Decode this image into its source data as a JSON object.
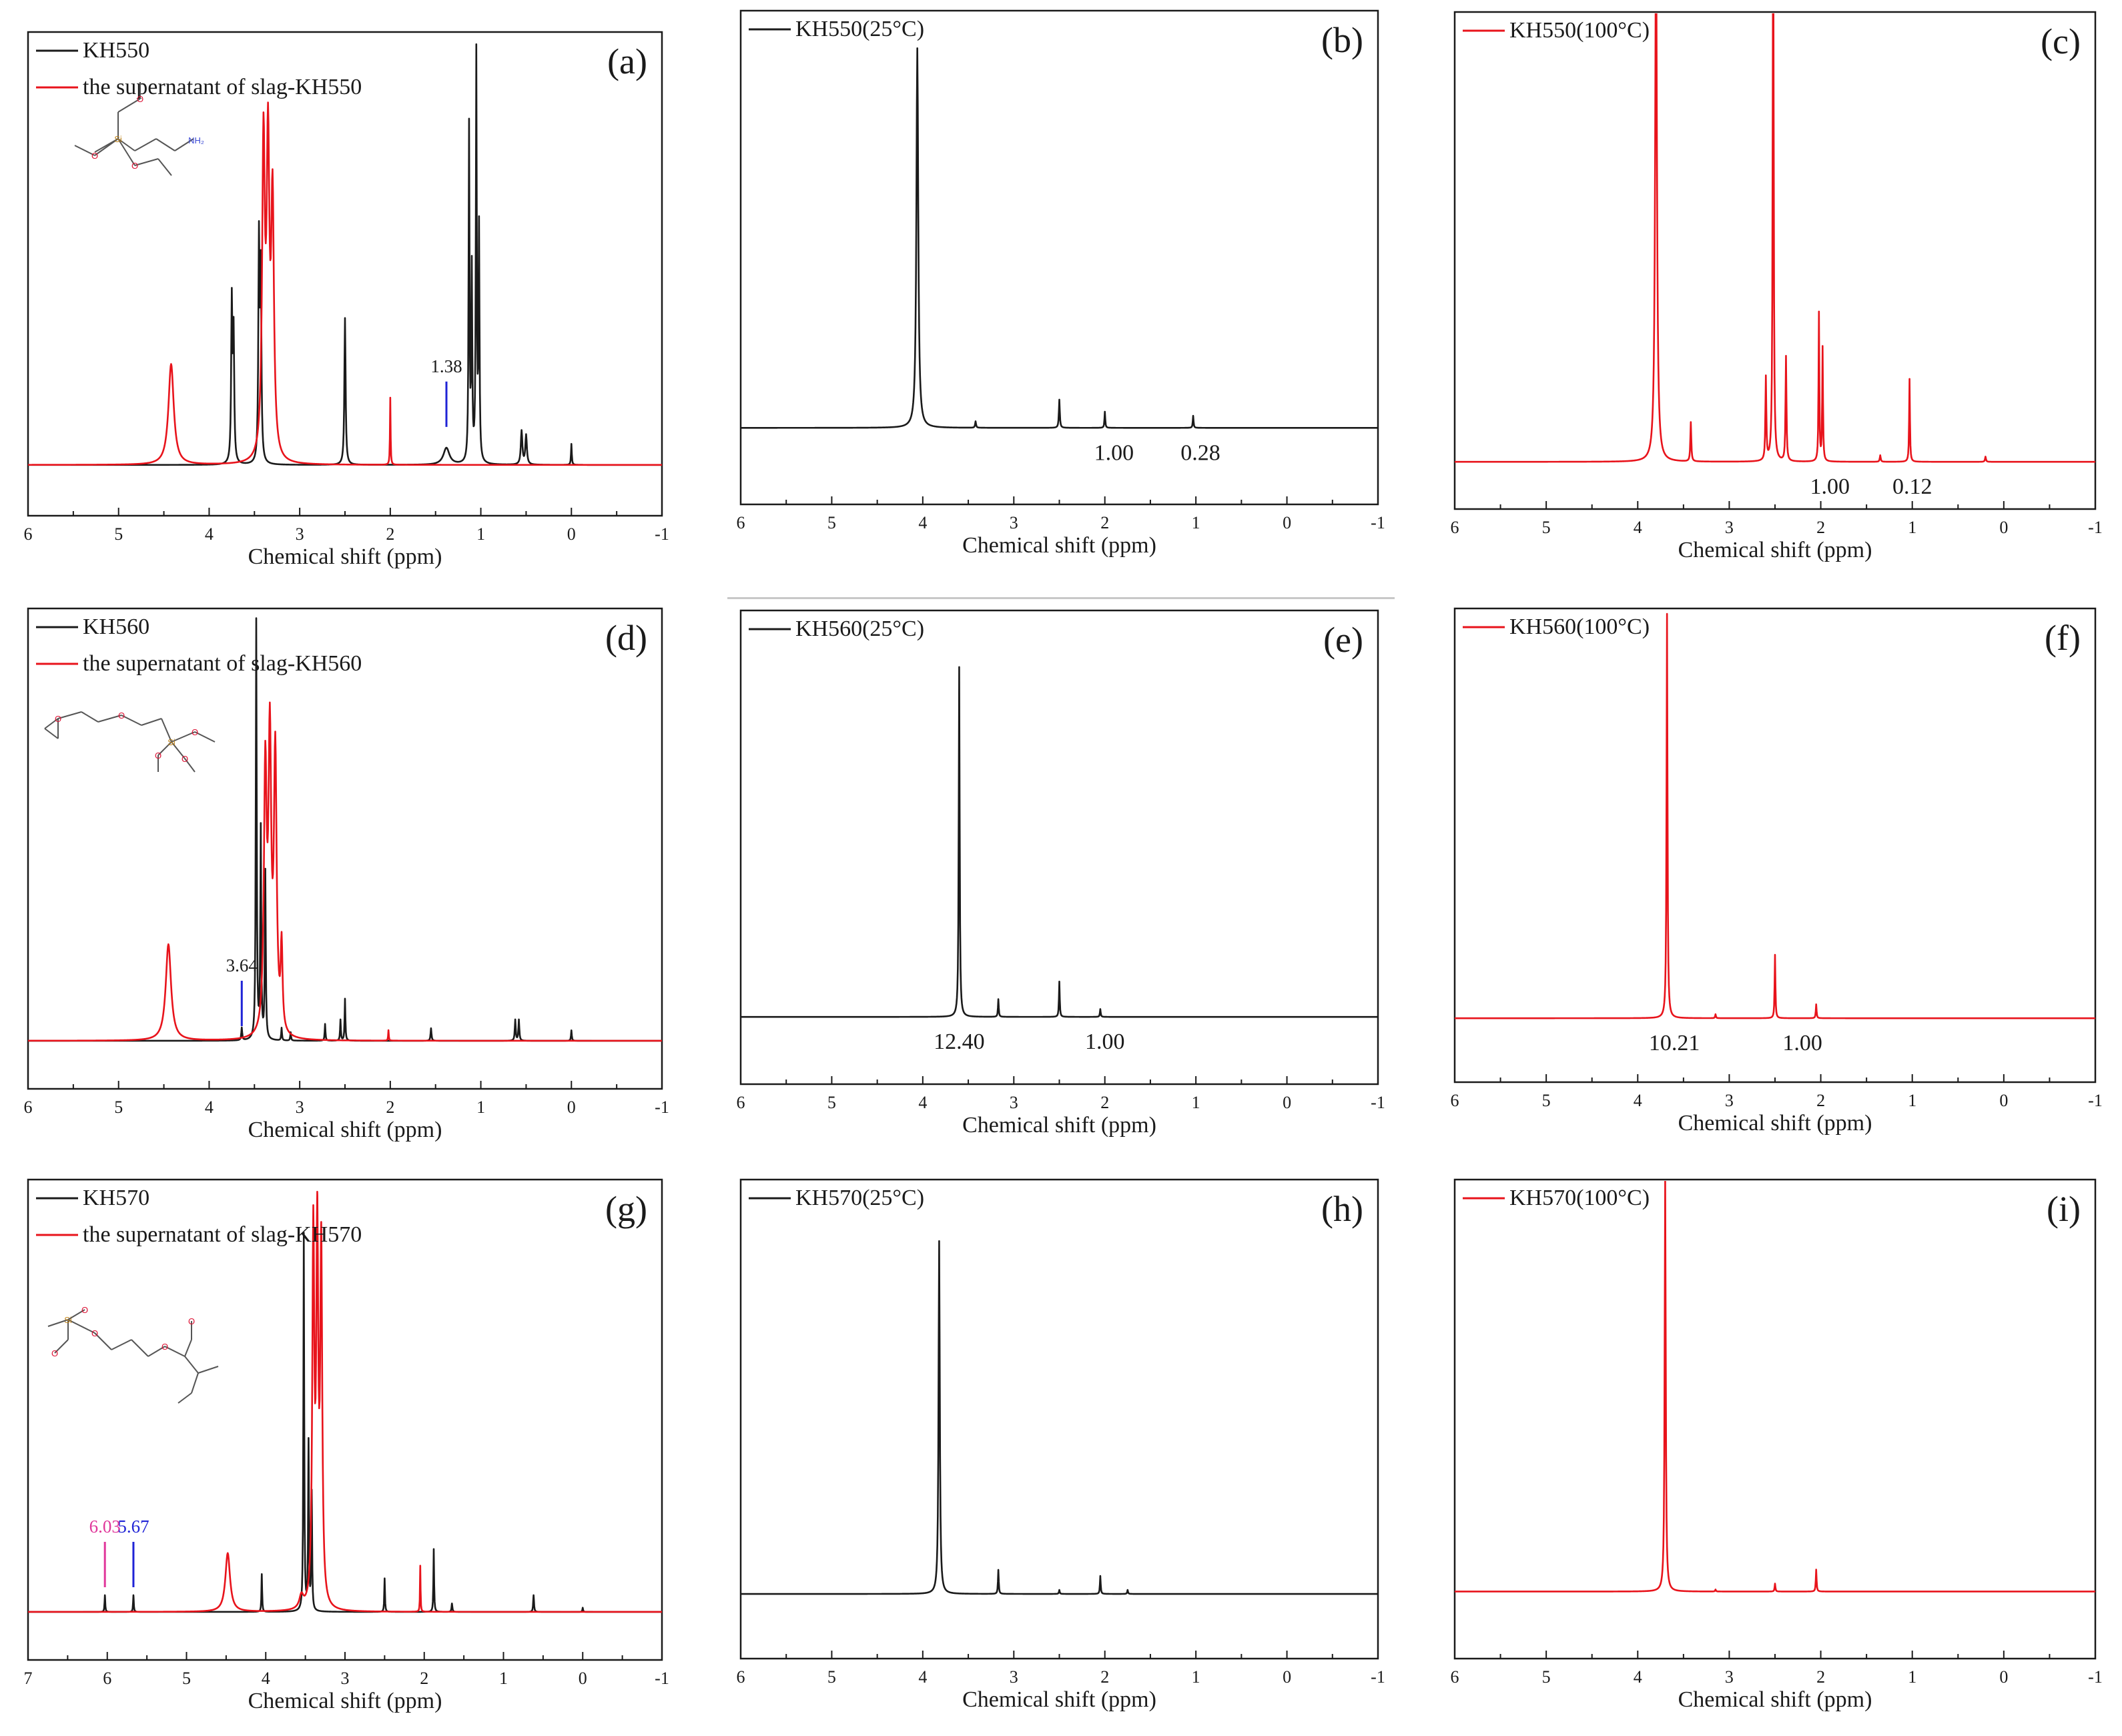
{
  "figure": {
    "colors": {
      "black": "#1a1a1a",
      "red": "#e8131b",
      "blue": "#1f23d6",
      "pink": "#e0379a"
    }
  },
  "chart_data": [
    {
      "id": "a",
      "panel_label": "(a)",
      "type": "line",
      "xlabel": "Chemical shift (ppm)",
      "ylabel": "",
      "xlim": [
        6,
        -1
      ],
      "x_reversed": true,
      "xticks": [
        "6",
        "5",
        "4",
        "3",
        "2",
        "1",
        "0",
        "-1"
      ],
      "legend_position": "top-left",
      "series": [
        {
          "name": "KH550",
          "color": "#1a1a1a",
          "peaks": [
            [
              3.75,
              0.38,
              0.008
            ],
            [
              3.73,
              0.3,
              0.008
            ],
            [
              3.45,
              0.52,
              0.008
            ],
            [
              3.43,
              0.44,
              0.008
            ],
            [
              2.5,
              0.35,
              0.008
            ],
            [
              1.38,
              0.04,
              0.04
            ],
            [
              1.13,
              0.8,
              0.006
            ],
            [
              1.1,
              0.45,
              0.006
            ],
            [
              1.05,
              0.97,
              0.006
            ],
            [
              1.02,
              0.55,
              0.006
            ],
            [
              0.55,
              0.08,
              0.01
            ],
            [
              0.5,
              0.07,
              0.01
            ],
            [
              0.0,
              0.05,
              0.005
            ]
          ]
        },
        {
          "name": "the supernatant of slag-KH550",
          "color": "#e8131b",
          "peaks": [
            [
              4.42,
              0.24,
              0.035
            ],
            [
              3.4,
              0.74,
              0.018
            ],
            [
              3.35,
              0.71,
              0.018
            ],
            [
              3.3,
              0.6,
              0.018
            ],
            [
              2.0,
              0.16,
              0.004
            ]
          ]
        }
      ],
      "annotations": [
        {
          "text": "1.38",
          "x": 1.38,
          "color": "#1a1a1a",
          "marker_color": "#1f23d6"
        }
      ],
      "structure": "KH550"
    },
    {
      "id": "b",
      "panel_label": "(b)",
      "type": "line",
      "xlabel": "Chemical shift (ppm)",
      "xlim": [
        6,
        -1
      ],
      "x_reversed": true,
      "xticks": [
        "6",
        "5",
        "4",
        "3",
        "2",
        "1",
        "0",
        "-1"
      ],
      "legend_position": "top-left",
      "series": [
        {
          "name": "KH550(25°C)",
          "color": "#1a1a1a",
          "peaks": [
            [
              4.06,
              0.94,
              0.012
            ],
            [
              3.42,
              0.016,
              0.006
            ],
            [
              2.5,
              0.07,
              0.006
            ],
            [
              2.0,
              0.04,
              0.005
            ],
            [
              1.03,
              0.03,
              0.005
            ]
          ]
        }
      ],
      "integrals": [
        {
          "text": "1.00",
          "x": 1.9
        },
        {
          "text": "0.28",
          "x": 0.95
        }
      ]
    },
    {
      "id": "c",
      "panel_label": "(c)",
      "type": "line",
      "xlabel": "Chemical shift (ppm)",
      "xlim": [
        6,
        -1
      ],
      "x_reversed": true,
      "xticks": [
        "6",
        "5",
        "4",
        "3",
        "2",
        "1",
        "0",
        "-1"
      ],
      "legend_position": "top-left",
      "series": [
        {
          "name": "KH550(100°C)",
          "color": "#e8131b",
          "peaks": [
            [
              3.8,
              1.2,
              0.012
            ],
            [
              3.42,
              0.09,
              0.006
            ],
            [
              2.6,
              0.19,
              0.006
            ],
            [
              2.52,
              1.4,
              0.006
            ],
            [
              2.38,
              0.24,
              0.006
            ],
            [
              2.02,
              0.34,
              0.005
            ],
            [
              1.98,
              0.26,
              0.005
            ],
            [
              1.35,
              0.015,
              0.006
            ],
            [
              1.03,
              0.19,
              0.005
            ],
            [
              0.2,
              0.012,
              0.006
            ]
          ]
        }
      ],
      "integrals": [
        {
          "text": "1.00",
          "x": 1.9
        },
        {
          "text": "0.12",
          "x": 1.0
        }
      ]
    },
    {
      "id": "d",
      "panel_label": "(d)",
      "type": "line",
      "xlabel": "Chemical shift (ppm)",
      "xlim": [
        6,
        -1
      ],
      "x_reversed": true,
      "xticks": [
        "6",
        "5",
        "4",
        "3",
        "2",
        "1",
        "0",
        "-1"
      ],
      "legend_position": "top-left",
      "series": [
        {
          "name": "KH560",
          "color": "#1a1a1a",
          "peaks": [
            [
              3.48,
              1.0,
              0.006
            ],
            [
              3.43,
              0.5,
              0.006
            ],
            [
              3.38,
              0.4,
              0.006
            ],
            [
              3.64,
              0.03,
              0.006
            ],
            [
              3.2,
              0.03,
              0.005
            ],
            [
              3.1,
              0.02,
              0.005
            ],
            [
              2.72,
              0.04,
              0.005
            ],
            [
              2.55,
              0.05,
              0.005
            ],
            [
              2.5,
              0.1,
              0.005
            ],
            [
              1.55,
              0.03,
              0.006
            ],
            [
              0.62,
              0.05,
              0.006
            ],
            [
              0.58,
              0.05,
              0.006
            ],
            [
              0.0,
              0.025,
              0.005
            ]
          ]
        },
        {
          "name": "the supernatant of slag-KH560",
          "color": "#e8131b",
          "peaks": [
            [
              4.45,
              0.23,
              0.035
            ],
            [
              3.38,
              0.62,
              0.018
            ],
            [
              3.33,
              0.68,
              0.018
            ],
            [
              3.27,
              0.66,
              0.018
            ],
            [
              3.2,
              0.2,
              0.012
            ],
            [
              2.02,
              0.025,
              0.004
            ]
          ]
        }
      ],
      "annotations": [
        {
          "text": "3.64",
          "x": 3.64,
          "color": "#1a1a1a",
          "marker_color": "#1f23d6"
        }
      ],
      "structure": "KH560"
    },
    {
      "id": "e",
      "panel_label": "(e)",
      "type": "line",
      "xlabel": "Chemical shift (ppm)",
      "xlim": [
        6,
        -1
      ],
      "x_reversed": true,
      "xticks": [
        "6",
        "5",
        "4",
        "3",
        "2",
        "1",
        "0",
        "-1"
      ],
      "legend_position": "top-left",
      "series": [
        {
          "name": "KH560(25°C)",
          "color": "#1a1a1a",
          "peaks": [
            [
              3.6,
              0.89,
              0.006
            ],
            [
              3.17,
              0.045,
              0.005
            ],
            [
              2.5,
              0.09,
              0.005
            ],
            [
              2.05,
              0.02,
              0.005
            ]
          ]
        }
      ],
      "integrals": [
        {
          "text": "12.40",
          "x": 3.6
        },
        {
          "text": "1.00",
          "x": 2.0
        }
      ]
    },
    {
      "id": "f",
      "panel_label": "(f)",
      "type": "line",
      "xlabel": "Chemical shift (ppm)",
      "xlim": [
        6,
        -1
      ],
      "x_reversed": true,
      "xticks": [
        "6",
        "5",
        "4",
        "3",
        "2",
        "1",
        "0",
        "-1"
      ],
      "legend_position": "top-left",
      "series": [
        {
          "name": "KH560(100°C)",
          "color": "#e8131b",
          "peaks": [
            [
              3.68,
              1.02,
              0.006
            ],
            [
              3.15,
              0.01,
              0.005
            ],
            [
              2.5,
              0.16,
              0.005
            ],
            [
              2.05,
              0.035,
              0.005
            ]
          ]
        }
      ],
      "integrals": [
        {
          "text": "10.21",
          "x": 3.6
        },
        {
          "text": "1.00",
          "x": 2.2
        }
      ]
    },
    {
      "id": "g",
      "panel_label": "(g)",
      "type": "line",
      "xlabel": "Chemical shift (ppm)",
      "xlim": [
        7,
        -1
      ],
      "x_reversed": true,
      "xticks": [
        "7",
        "6",
        "5",
        "4",
        "3",
        "2",
        "1",
        "0",
        "-1"
      ],
      "legend_position": "top-left",
      "series": [
        {
          "name": "KH570",
          "color": "#1a1a1a",
          "peaks": [
            [
              6.03,
              0.04,
              0.005
            ],
            [
              5.67,
              0.04,
              0.005
            ],
            [
              4.05,
              0.09,
              0.005
            ],
            [
              3.52,
              0.9,
              0.006
            ],
            [
              3.46,
              0.4,
              0.006
            ],
            [
              3.42,
              0.28,
              0.006
            ],
            [
              2.5,
              0.08,
              0.005
            ],
            [
              1.88,
              0.15,
              0.005
            ],
            [
              1.65,
              0.02,
              0.006
            ],
            [
              0.62,
              0.04,
              0.006
            ],
            [
              0.0,
              0.01,
              0.005
            ]
          ]
        },
        {
          "name": "the supernatant of slag-KH570",
          "color": "#e8131b",
          "peaks": [
            [
              4.48,
              0.14,
              0.035
            ],
            [
              3.4,
              0.88,
              0.015
            ],
            [
              3.35,
              0.86,
              0.015
            ],
            [
              3.3,
              0.84,
              0.015
            ],
            [
              3.55,
              0.03,
              0.03
            ],
            [
              2.05,
              0.11,
              0.004
            ]
          ]
        }
      ],
      "annotations": [
        {
          "text": "6.03",
          "x": 6.03,
          "color": "#e0379a",
          "marker_color": "#e0379a"
        },
        {
          "text": "5.67",
          "x": 5.67,
          "color": "#1f23d6",
          "marker_color": "#1f23d6"
        }
      ],
      "structure": "KH570"
    },
    {
      "id": "h",
      "panel_label": "(h)",
      "type": "line",
      "xlabel": "Chemical shift (ppm)",
      "xlim": [
        6,
        -1
      ],
      "x_reversed": true,
      "xticks": [
        "6",
        "5",
        "4",
        "3",
        "2",
        "1",
        "0",
        "-1"
      ],
      "legend_position": "top-left",
      "series": [
        {
          "name": "KH570(25°C)",
          "color": "#1a1a1a",
          "peaks": [
            [
              3.82,
              0.88,
              0.008
            ],
            [
              3.17,
              0.06,
              0.005
            ],
            [
              2.5,
              0.01,
              0.005
            ],
            [
              2.05,
              0.045,
              0.005
            ],
            [
              1.75,
              0.01,
              0.005
            ]
          ]
        }
      ]
    },
    {
      "id": "i",
      "panel_label": "(i)",
      "type": "line",
      "xlabel": "Chemical shift (ppm)",
      "xlim": [
        6,
        -1
      ],
      "x_reversed": true,
      "xticks": [
        "6",
        "5",
        "4",
        "3",
        "2",
        "1",
        "0",
        "-1"
      ],
      "legend_position": "top-left",
      "series": [
        {
          "name": "KH570(100°C)",
          "color": "#e8131b",
          "peaks": [
            [
              3.7,
              1.04,
              0.007
            ],
            [
              3.15,
              0.005,
              0.005
            ],
            [
              2.5,
              0.02,
              0.005
            ],
            [
              2.05,
              0.055,
              0.005
            ]
          ]
        }
      ]
    }
  ]
}
